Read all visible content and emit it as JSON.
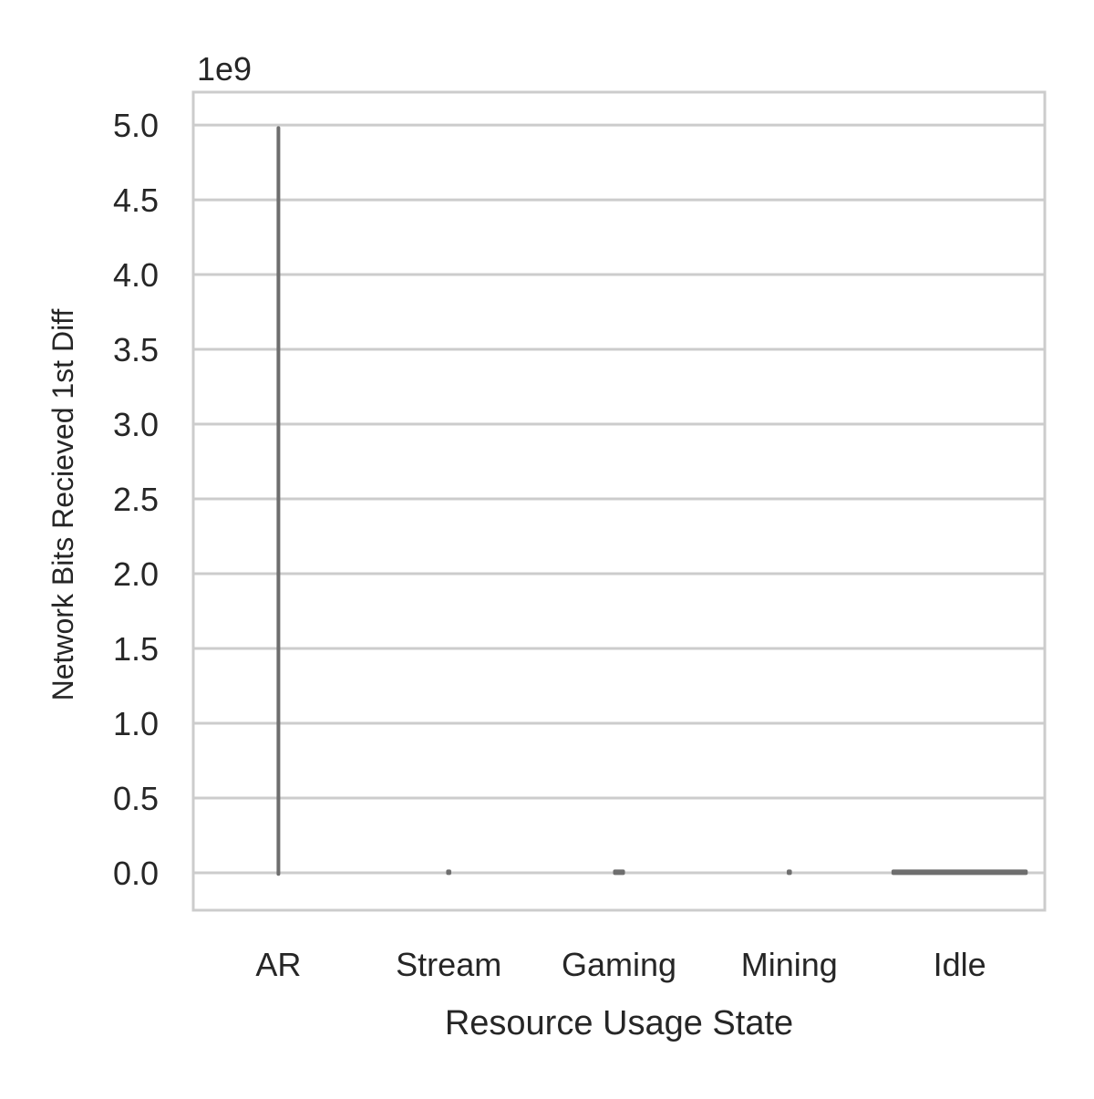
{
  "chart_data": {
    "type": "violin",
    "title": "",
    "xlabel": "Resource Usage State",
    "ylabel": "Network Bits Recieved 1st Diff",
    "y_offset_label": "1e9",
    "y_scale_factor": 1000000000,
    "ylim": [
      -0.25,
      5.22
    ],
    "yticks": [
      0.0,
      0.5,
      1.0,
      1.5,
      2.0,
      2.5,
      3.0,
      3.5,
      4.0,
      4.5,
      5.0
    ],
    "ytick_labels": [
      "0.0",
      "0.5",
      "1.0",
      "1.5",
      "2.0",
      "2.5",
      "3.0",
      "3.5",
      "4.0",
      "4.5",
      "5.0"
    ],
    "grid": true,
    "categories": [
      "AR",
      "Stream",
      "Gaming",
      "Mining",
      "Idle"
    ],
    "distributions": [
      {
        "category": "AR",
        "min": -0.02,
        "max": 4.98,
        "width_fraction": 0.01
      },
      {
        "category": "Stream",
        "min": -0.01,
        "max": 0.01,
        "width_fraction": 0.03
      },
      {
        "category": "Gaming",
        "min": -0.01,
        "max": 0.01,
        "width_fraction": 0.07
      },
      {
        "category": "Mining",
        "min": -0.01,
        "max": 0.01,
        "width_fraction": 0.03
      },
      {
        "category": "Idle",
        "min": -0.01,
        "max": 0.01,
        "width_fraction": 0.8
      }
    ],
    "colors": {
      "violin": "#6e6e6e",
      "grid": "#cccccc",
      "spine": "#cccccc",
      "text": "#262626"
    }
  }
}
